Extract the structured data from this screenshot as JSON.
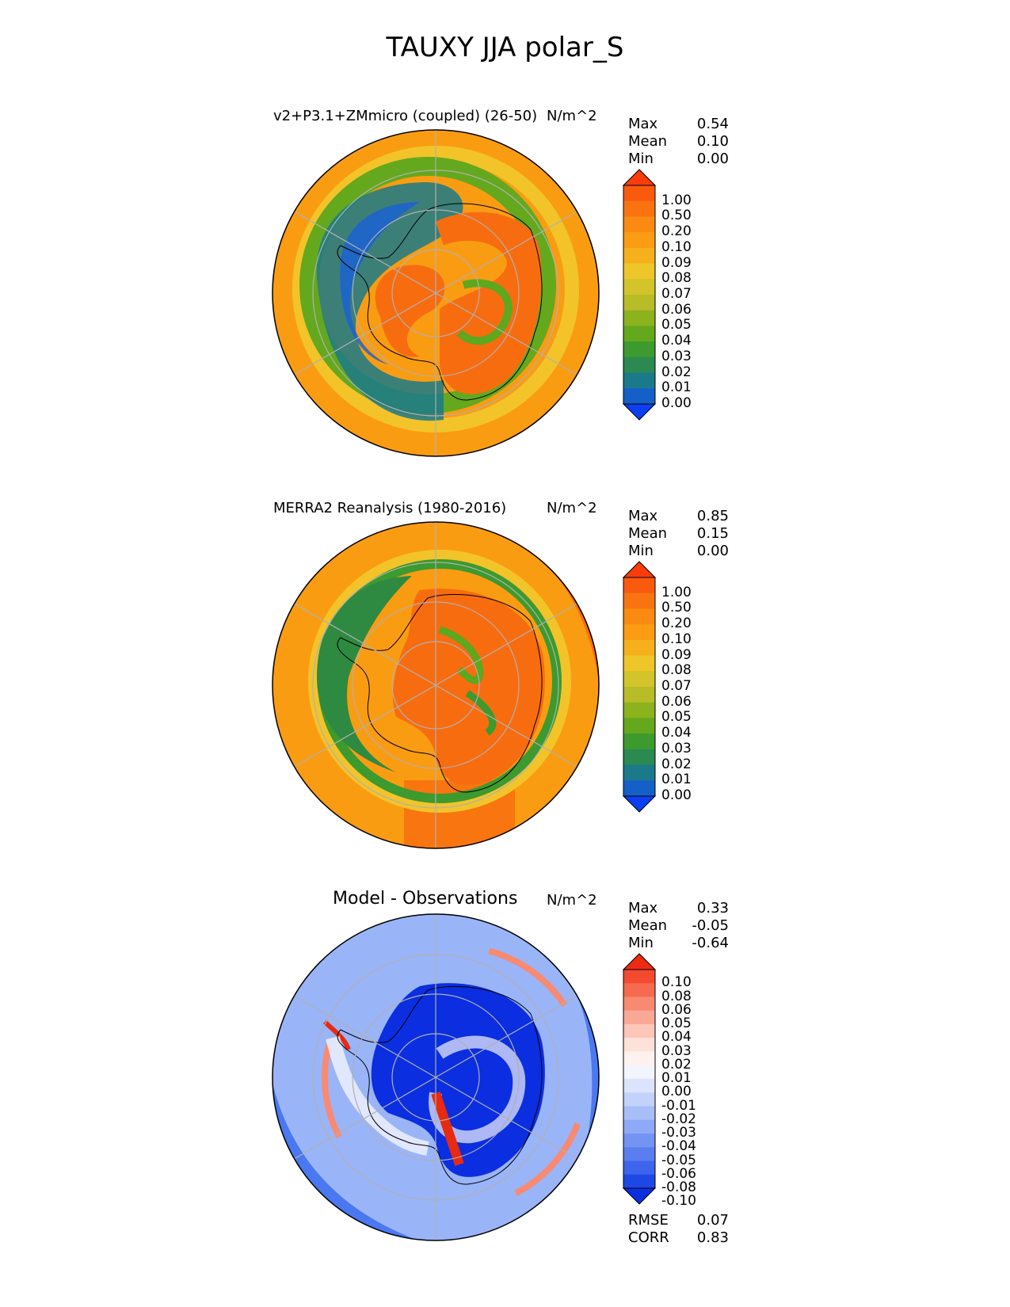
{
  "title": "TAUXY JJA polar_S",
  "colors": {
    "orange": "#fa9c12",
    "dark_orange": "#f86c10",
    "red": "#fa2c0a",
    "yellow": "#f2c42a",
    "green": "#5ca81e",
    "dark_green": "#2e8a40",
    "teal": "#1a7a8a",
    "blue": "#1860d8",
    "diff_blue": "#0a2ee0",
    "diff_light_blue": "#4a78f0",
    "diff_pale_blue": "#9ab4f8",
    "diff_red": "#e82a10",
    "coast": "#000000",
    "grid": "#b0b0b0"
  },
  "panels": [
    {
      "title": "v2+P3.1+ZMmicro (coupled) (26-50)",
      "units": "N/m^2",
      "stats": [
        {
          "label": "Max",
          "value": "0.54"
        },
        {
          "label": "Mean",
          "value": "0.10"
        },
        {
          "label": "Min",
          "value": "0.00"
        }
      ],
      "colorbar_ticks": [
        "1.00",
        "0.50",
        "0.20",
        "0.10",
        "0.09",
        "0.08",
        "0.07",
        "0.06",
        "0.05",
        "0.04",
        "0.03",
        "0.02",
        "0.01",
        "0.00"
      ],
      "colorbar_colors": [
        "#fa3c0a",
        "#fa5a0e",
        "#f97411",
        "#fa8a12",
        "#fb9c14",
        "#f6b01c",
        "#eec62a",
        "#d2c42a",
        "#b8bc26",
        "#8cb21e",
        "#64a81e",
        "#3c9a2e",
        "#2a8a52",
        "#1a7a8a",
        "#1560c8",
        "#0a40f0"
      ]
    },
    {
      "title": "MERRA2 Reanalysis (1980-2016)",
      "units": "N/m^2",
      "stats": [
        {
          "label": "Max",
          "value": "0.85"
        },
        {
          "label": "Mean",
          "value": "0.15"
        },
        {
          "label": "Min",
          "value": "0.00"
        }
      ],
      "colorbar_ticks": [
        "1.00",
        "0.50",
        "0.20",
        "0.10",
        "0.09",
        "0.08",
        "0.07",
        "0.06",
        "0.05",
        "0.04",
        "0.03",
        "0.02",
        "0.01",
        "0.00"
      ],
      "colorbar_colors": [
        "#fa3c0a",
        "#fa5a0e",
        "#f97411",
        "#fa8a12",
        "#fb9c14",
        "#f6b01c",
        "#eec62a",
        "#d2c42a",
        "#b8bc26",
        "#8cb21e",
        "#64a81e",
        "#3c9a2e",
        "#2a8a52",
        "#1a7a8a",
        "#1560c8",
        "#0a40f0"
      ]
    },
    {
      "title": "Model - Observations",
      "units": "N/m^2",
      "stats": [
        {
          "label": "Max",
          "value": "0.33"
        },
        {
          "label": "Mean",
          "value": "-0.05"
        },
        {
          "label": "Min",
          "value": "-0.64"
        }
      ],
      "colorbar_ticks": [
        "0.10",
        "0.08",
        "0.06",
        "0.05",
        "0.04",
        "0.03",
        "0.02",
        "0.01",
        "0.00",
        "-0.01",
        "-0.02",
        "-0.03",
        "-0.04",
        "-0.05",
        "-0.06",
        "-0.08",
        "-0.10"
      ],
      "colorbar_colors": [
        "#f02a10",
        "#f44a30",
        "#f66a50",
        "#f88a72",
        "#faa896",
        "#fcc6b8",
        "#fde2da",
        "#fff2ee",
        "#f2f4fe",
        "#dce4fd",
        "#c2d2fb",
        "#a8bef9",
        "#8eaaf6",
        "#7494f3",
        "#5a7ef0",
        "#3c64ec",
        "#1e48e6",
        "#0a2ee0"
      ],
      "metrics": [
        {
          "label": "RMSE",
          "value": "0.07"
        },
        {
          "label": "CORR",
          "value": "0.83"
        }
      ]
    }
  ],
  "chart_data": [
    {
      "type": "heatmap",
      "title": "v2+P3.1+ZMmicro (coupled) (26-50)",
      "projection": "south-polar-stereographic",
      "variable": "TAUXY",
      "season": "JJA",
      "units": "N/m^2",
      "stats": {
        "max": 0.54,
        "mean": 0.1,
        "min": 0.0
      },
      "levels": [
        0.0,
        0.01,
        0.02,
        0.03,
        0.04,
        0.05,
        0.06,
        0.07,
        0.08,
        0.09,
        0.1,
        0.2,
        0.5,
        1.0
      ]
    },
    {
      "type": "heatmap",
      "title": "MERRA2 Reanalysis (1980-2016)",
      "projection": "south-polar-stereographic",
      "variable": "TAUXY",
      "season": "JJA",
      "units": "N/m^2",
      "stats": {
        "max": 0.85,
        "mean": 0.15,
        "min": 0.0
      },
      "levels": [
        0.0,
        0.01,
        0.02,
        0.03,
        0.04,
        0.05,
        0.06,
        0.07,
        0.08,
        0.09,
        0.1,
        0.2,
        0.5,
        1.0
      ]
    },
    {
      "type": "heatmap",
      "title": "Model - Observations",
      "projection": "south-polar-stereographic",
      "units": "N/m^2",
      "stats": {
        "max": 0.33,
        "mean": -0.05,
        "min": -0.64
      },
      "levels": [
        -0.1,
        -0.08,
        -0.06,
        -0.05,
        -0.04,
        -0.03,
        -0.02,
        -0.01,
        0.0,
        0.01,
        0.02,
        0.03,
        0.04,
        0.05,
        0.06,
        0.08,
        0.1
      ],
      "rmse": 0.07,
      "corr": 0.83
    }
  ]
}
